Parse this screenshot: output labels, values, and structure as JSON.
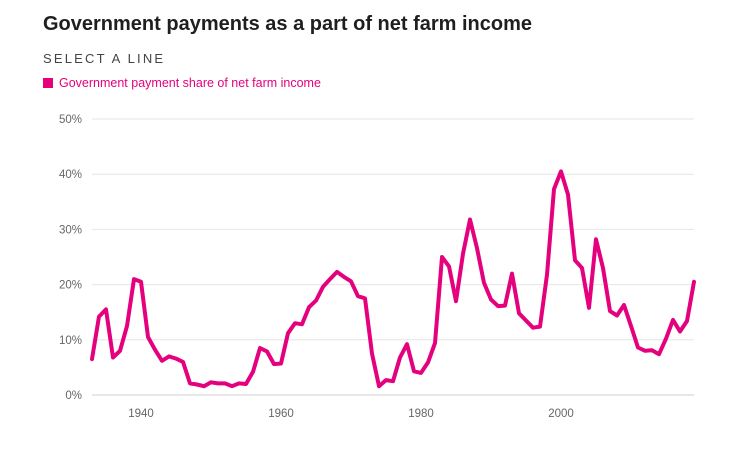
{
  "header": {
    "title": "Government payments as a part of net farm income",
    "select_label": "SELECT A LINE"
  },
  "colors": {
    "accent": "#e5007e",
    "grid": "#e6e6e6",
    "tick": "#666666"
  },
  "chart_data": {
    "type": "line",
    "title": "Government payments as a part of net farm income",
    "xlabel": "",
    "ylabel": "",
    "xlim": [
      1933,
      2019
    ],
    "ylim": [
      0,
      50
    ],
    "y_ticks": [
      0,
      10,
      20,
      30,
      40,
      50
    ],
    "y_tick_labels": [
      "0%",
      "10%",
      "20%",
      "30%",
      "40%",
      "50%"
    ],
    "x_ticks": [
      1940,
      1960,
      1980,
      2000
    ],
    "x_tick_labels": [
      "1940",
      "1960",
      "1980",
      "2000"
    ],
    "grid": "horizontal",
    "legend_position": "top-left",
    "series": [
      {
        "name": "Government payment share of net farm income",
        "color": "#e5007e",
        "x": [
          1933,
          1934,
          1935,
          1936,
          1937,
          1938,
          1939,
          1940,
          1941,
          1942,
          1943,
          1944,
          1945,
          1946,
          1947,
          1948,
          1949,
          1950,
          1951,
          1952,
          1953,
          1954,
          1955,
          1956,
          1957,
          1958,
          1959,
          1960,
          1961,
          1962,
          1963,
          1964,
          1965,
          1966,
          1967,
          1968,
          1969,
          1970,
          1971,
          1972,
          1973,
          1974,
          1975,
          1976,
          1977,
          1978,
          1979,
          1980,
          1981,
          1982,
          1983,
          1984,
          1985,
          1986,
          1987,
          1988,
          1989,
          1990,
          1991,
          1992,
          1993,
          1994,
          1995,
          1996,
          1997,
          1998,
          1999,
          2000,
          2001,
          2002,
          2003,
          2004,
          2005,
          2006,
          2007,
          2008,
          2009,
          2010,
          2011,
          2012,
          2013,
          2014,
          2015,
          2016,
          2017,
          2018,
          2019
        ],
        "values": [
          6.5,
          14.2,
          15.5,
          6.8,
          8.0,
          12.5,
          21.0,
          20.5,
          10.5,
          8.2,
          6.2,
          7.0,
          6.6,
          6.0,
          2.1,
          1.9,
          1.6,
          2.3,
          2.1,
          2.1,
          1.6,
          2.1,
          2.0,
          4.2,
          8.5,
          7.9,
          5.6,
          5.7,
          11.2,
          13.0,
          12.8,
          15.9,
          17.1,
          19.6,
          21.0,
          22.3,
          21.4,
          20.6,
          17.9,
          17.5,
          7.5,
          1.6,
          2.7,
          2.5,
          6.8,
          9.2,
          4.3,
          4.0,
          5.9,
          9.4,
          25.0,
          23.3,
          17.0,
          25.6,
          31.8,
          26.6,
          20.3,
          17.3,
          16.1,
          16.2,
          22.0,
          14.8,
          13.5,
          12.2,
          12.4,
          21.8,
          37.3,
          40.5,
          36.3,
          24.4,
          23.0,
          15.8,
          28.2,
          23.0,
          15.2,
          14.4,
          16.3,
          12.5,
          8.6,
          8.0,
          8.1,
          7.4,
          10.2,
          13.6,
          11.5,
          13.4,
          20.5
        ]
      }
    ]
  }
}
